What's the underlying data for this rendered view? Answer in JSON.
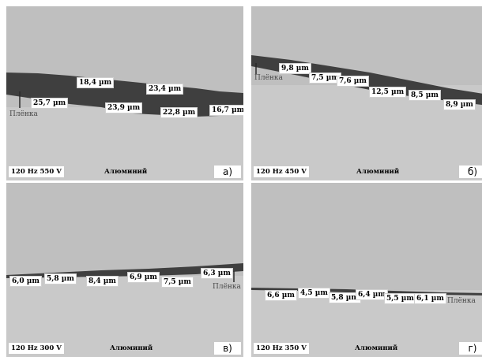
{
  "panels": [
    {
      "id": "a",
      "condition": "120 Hz 550 V",
      "material": "Алюминий",
      "film_label": "Плёнка",
      "letter": "а)",
      "measurements": [
        "18,4 µm",
        "23,4 µm",
        "25,7 µm",
        "23,9 µm",
        "22,8 µm",
        "16,7 µm"
      ]
    },
    {
      "id": "b",
      "condition": "120 Hz 450 V",
      "material": "Алюминий",
      "film_label": "Плёнка",
      "letter": "б)",
      "measurements": [
        "9,8 µm",
        "7,5 µm",
        "7,6 µm",
        "12,5 µm",
        "8,5 µm",
        "8,9 µm"
      ]
    },
    {
      "id": "c",
      "condition": "120 Hz 300 V",
      "material": "Алюминий",
      "film_label": "Плёнка",
      "letter": "в)",
      "measurements": [
        "6,0 µm",
        "5,8 µm",
        "8,4 µm",
        "6,9 µm",
        "7,5 µm",
        "6,3 µm"
      ]
    },
    {
      "id": "d",
      "condition": "120 Hz 350 V",
      "material": "Алюминий",
      "film_label": "Плёнка",
      "letter": "г)",
      "measurements": [
        "6,6 µm",
        "4,5 µm",
        "5,8 µm",
        "6,4 µm",
        "5,5 µm",
        "6,1 µm"
      ]
    }
  ],
  "colors": {
    "coating_background": "#bfbfbf",
    "aluminium": "#c9c9c9",
    "film": "#3f3f3f",
    "label_box": "#ffffff"
  }
}
